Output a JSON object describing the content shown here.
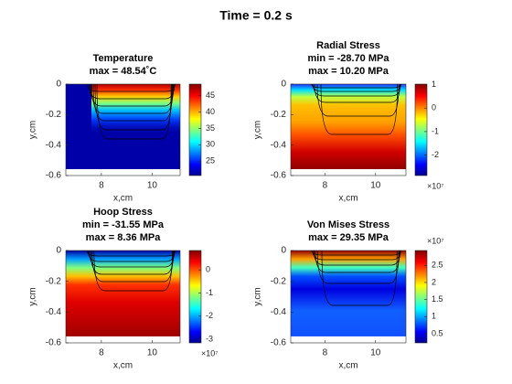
{
  "title": "Time = 0.2 s",
  "chart_data": [
    {
      "type": "heatmap",
      "title": [
        "Temperature",
        "max =  48.54˚C"
      ],
      "xlabel": "x,cm",
      "ylabel": "y,cm",
      "xlim": [
        6.6,
        11.1
      ],
      "xticks": [
        8,
        10
      ],
      "ylim": [
        -0.6,
        0
      ],
      "yticks": [
        -0.6,
        -0.4,
        -0.2,
        0
      ],
      "colormap": "jet",
      "clim": [
        20.6,
        48.54
      ],
      "cticks": [
        25,
        30,
        35,
        40,
        45
      ]
    },
    {
      "type": "heatmap",
      "title": [
        "Radial Stress",
        "min = -28.70 MPa",
        "max = 10.20 MPa"
      ],
      "xlabel": "x,cm",
      "ylabel": "y,cm",
      "xlim": [
        6.65,
        11.2
      ],
      "xticks": [
        8,
        10
      ],
      "ylim": [
        -0.6,
        0
      ],
      "yticks": [
        -0.6,
        -0.4,
        -0.2,
        0
      ],
      "colormap": "jet",
      "clim": [
        -28700000,
        10200000
      ],
      "cticks": [
        {
          "value": -20000000,
          "label": "-2"
        },
        {
          "value": -10000000,
          "label": "-1"
        },
        0,
        {
          "value": 10000000,
          "label": "1"
        }
      ],
      "colorbar_multiplier": "×10⁷"
    },
    {
      "type": "heatmap",
      "title": [
        "Hoop Stress",
        "min = -31.55 MPa",
        "max = 8.36 MPa"
      ],
      "xlabel": "x,cm",
      "ylabel": "y,cm",
      "xlim": [
        6.6,
        11.1
      ],
      "xticks": [
        8,
        10
      ],
      "ylim": [
        -0.6,
        0
      ],
      "yticks": [
        -0.6,
        -0.4,
        -0.2,
        0
      ],
      "colormap": "jet",
      "clim": [
        -31550000,
        8360000
      ],
      "cticks": [
        {
          "value": -30000000,
          "label": "-3"
        },
        {
          "value": -20000000,
          "label": "-2"
        },
        {
          "value": -10000000,
          "label": "-1"
        },
        0
      ],
      "colorbar_multiplier": "×10⁷"
    },
    {
      "type": "heatmap",
      "title": [
        "Von Mises Stress",
        "max = 29.35 MPa"
      ],
      "xlabel": "x,cm",
      "ylabel": "y,cm",
      "xlim": [
        6.65,
        11.2
      ],
      "xticks": [
        8,
        10
      ],
      "ylim": [
        -0.6,
        0
      ],
      "yticks": [
        -0.6,
        -0.4,
        -0.2,
        0
      ],
      "colormap": "jet",
      "clim": [
        2300000,
        29350000
      ],
      "cticks": [
        {
          "value": 5000000,
          "label": "0.5"
        },
        {
          "value": 10000000,
          "label": "1"
        },
        {
          "value": 15000000,
          "label": "1.5"
        },
        {
          "value": 20000000,
          "label": "2"
        },
        {
          "value": 25000000,
          "label": "2.5"
        }
      ],
      "colorbar_multiplier": "×10⁷"
    }
  ]
}
